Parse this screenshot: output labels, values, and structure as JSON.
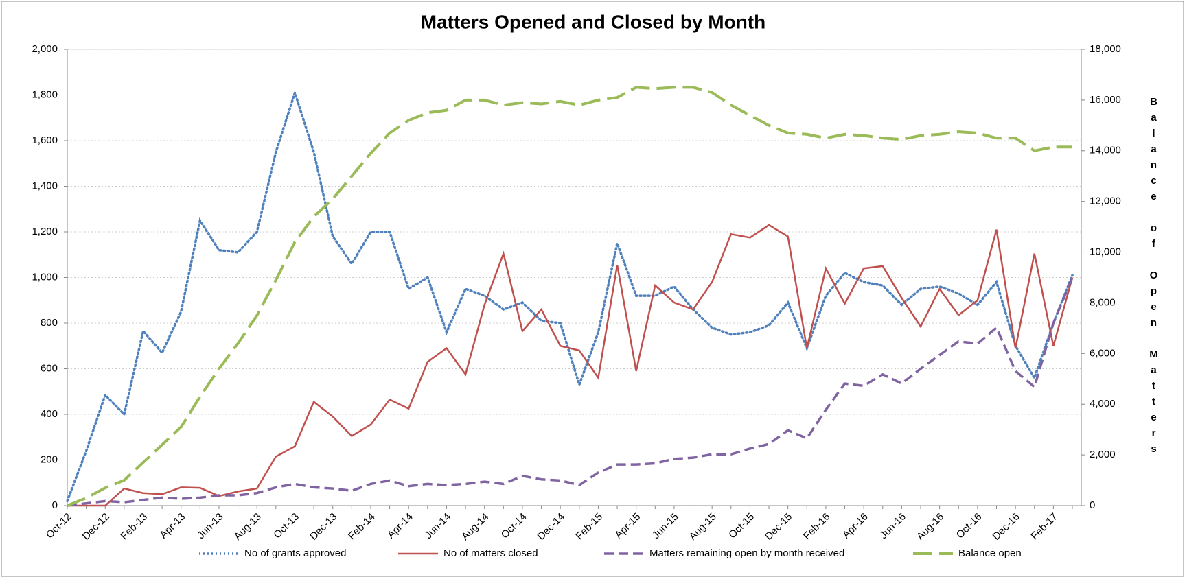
{
  "chart_data": {
    "type": "line",
    "title": "Matters Opened and Closed by Month",
    "y2label": "Balance of Open Matters",
    "categories": [
      "Oct-12",
      null,
      "Dec-12",
      null,
      "Feb-13",
      null,
      "Apr-13",
      null,
      "Jun-13",
      null,
      "Aug-13",
      null,
      "Oct-13",
      null,
      "Dec-13",
      null,
      "Feb-14",
      null,
      "Apr-14",
      null,
      "Jun-14",
      null,
      "Aug-14",
      null,
      "Oct-14",
      null,
      "Dec-14",
      null,
      "Feb-15",
      null,
      "Apr-15",
      null,
      "Jun-15",
      null,
      "Aug-15",
      null,
      "Oct-15",
      null,
      "Dec-15",
      null,
      "Feb-16",
      null,
      "Apr-16",
      null,
      "Jun-16",
      null,
      "Aug-16",
      null,
      "Oct-16",
      null,
      "Dec-16",
      null,
      "Feb-17",
      null
    ],
    "series": [
      {
        "name": "No of grants approved",
        "color": "#4f81bd",
        "dash": "dot",
        "axis": "y",
        "values": [
          20,
          240,
          485,
          400,
          765,
          670,
          850,
          1250,
          1120,
          1110,
          1200,
          1550,
          1810,
          1550,
          1180,
          1060,
          1200,
          1200,
          950,
          1000,
          760,
          950,
          920,
          860,
          890,
          810,
          800,
          530,
          760,
          1150,
          920,
          920,
          960,
          860,
          780,
          750,
          760,
          790,
          890,
          690,
          920,
          1020,
          980,
          965,
          880,
          950,
          960,
          930,
          880,
          980,
          700,
          560,
          800,
          1010
        ]
      },
      {
        "name": "No of matters closed",
        "color": "#c0504d",
        "dash": "solid",
        "axis": "y",
        "values": [
          0,
          0,
          0,
          75,
          55,
          50,
          80,
          78,
          42,
          62,
          75,
          215,
          260,
          455,
          390,
          305,
          355,
          465,
          425,
          630,
          690,
          575,
          880,
          1105,
          765,
          860,
          700,
          680,
          560,
          1055,
          590,
          965,
          890,
          860,
          980,
          1190,
          1175,
          1230,
          1180,
          690,
          1040,
          885,
          1040,
          1050,
          910,
          785,
          950,
          835,
          900,
          1210,
          690,
          1105,
          700,
          1000
        ]
      },
      {
        "name": "Matters remaining open by month received",
        "color": "#8064a2",
        "dash": "dash",
        "axis": "y",
        "values": [
          0,
          10,
          20,
          15,
          25,
          35,
          30,
          35,
          45,
          45,
          55,
          80,
          95,
          80,
          75,
          65,
          95,
          110,
          85,
          95,
          90,
          95,
          105,
          95,
          130,
          115,
          110,
          90,
          145,
          180,
          180,
          185,
          205,
          210,
          225,
          225,
          250,
          270,
          330,
          295,
          420,
          535,
          525,
          575,
          535,
          600,
          660,
          720,
          710,
          780,
          590,
          520,
          800,
          1000
        ]
      },
      {
        "name": "Balance open",
        "color": "#9bbb59",
        "dash": "longdash",
        "axis": "y2",
        "values": [
          0,
          300,
          700,
          1000,
          1700,
          2400,
          3100,
          4300,
          5400,
          6400,
          7500,
          8900,
          10400,
          11400,
          12100,
          13000,
          13900,
          14700,
          15200,
          15500,
          15600,
          16000,
          16000,
          15800,
          15900,
          15850,
          15950,
          15800,
          16000,
          16100,
          16500,
          16450,
          16500,
          16500,
          16300,
          15800,
          15400,
          15000,
          14700,
          14650,
          14500,
          14650,
          14600,
          14500,
          14450,
          14600,
          14650,
          14750,
          14700,
          14500,
          14500,
          14000,
          14150,
          14150
        ]
      }
    ],
    "ylim": [
      0,
      2000
    ],
    "yticks": [
      0,
      200,
      400,
      600,
      800,
      {
        "value": 1000,
        "label": "1,000"
      },
      {
        "value": 1200,
        "label": "1,200"
      },
      {
        "value": 1400,
        "label": "1,400"
      },
      {
        "value": 1600,
        "label": "1,600"
      },
      {
        "value": 1800,
        "label": "1,800"
      },
      {
        "value": 2000,
        "label": "2,000"
      }
    ],
    "y2lim": [
      0,
      18000
    ],
    "y2ticks": [
      0,
      {
        "value": 2000,
        "label": "2,000"
      },
      {
        "value": 4000,
        "label": "4,000"
      },
      {
        "value": 6000,
        "label": "6,000"
      },
      {
        "value": 8000,
        "label": "8,000"
      },
      {
        "value": 10000,
        "label": "10,000"
      },
      {
        "value": 12000,
        "label": "12,000"
      },
      {
        "value": 14000,
        "label": "14,000"
      },
      {
        "value": 16000,
        "label": "16,000"
      },
      {
        "value": 18000,
        "label": "18,000"
      }
    ],
    "grid": true
  }
}
